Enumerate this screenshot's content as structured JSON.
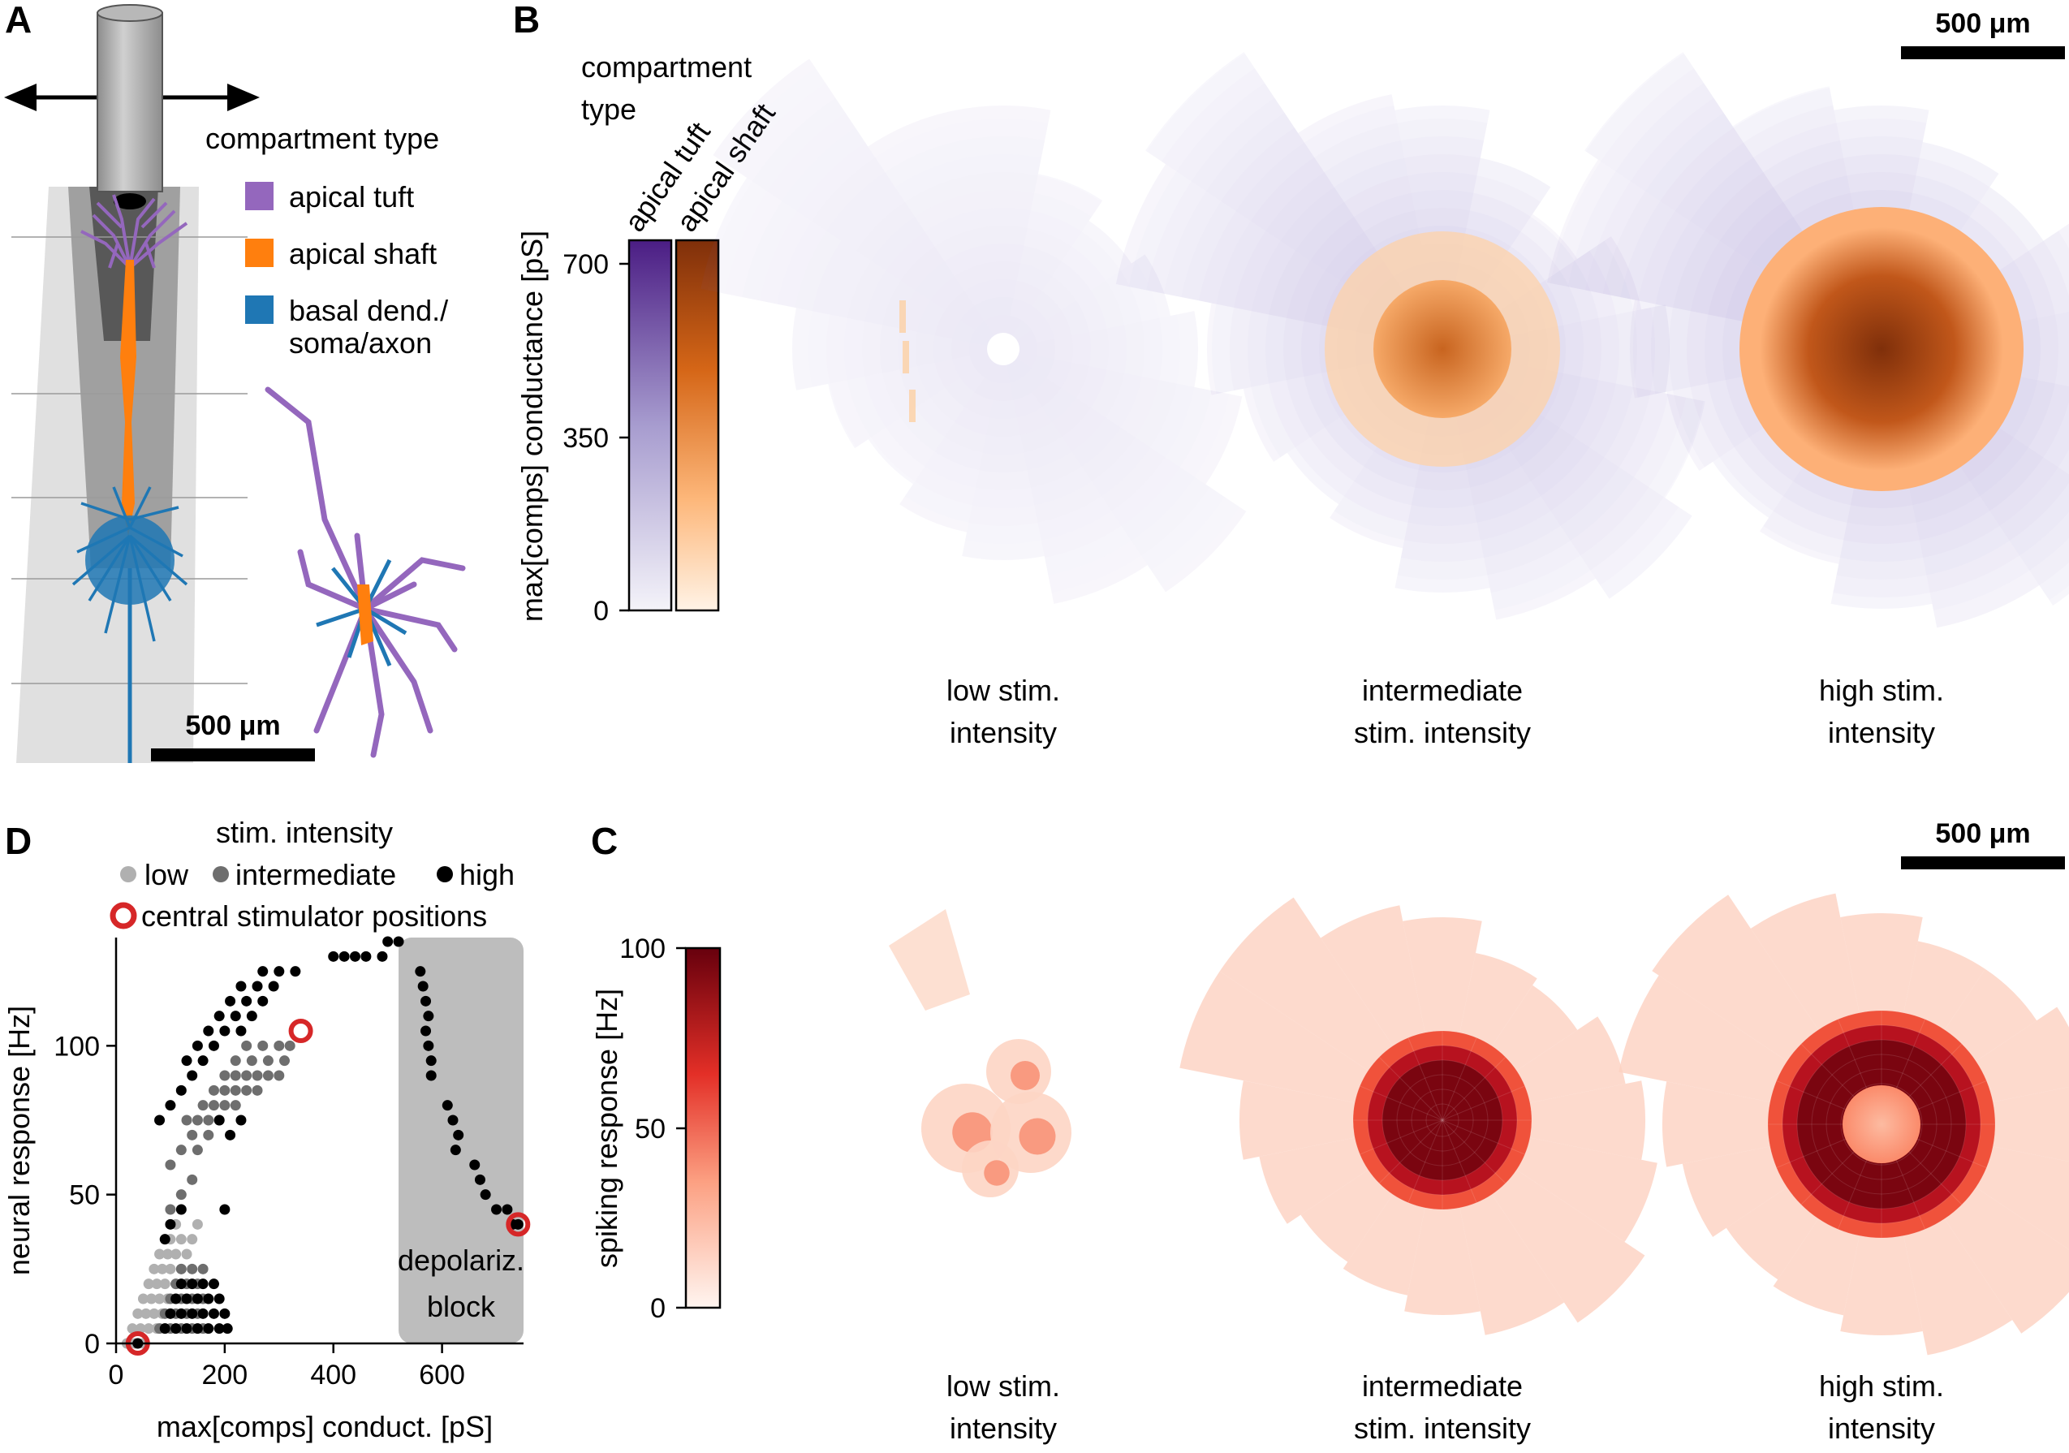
{
  "panel_letters": {
    "A": "A",
    "B": "B",
    "C": "C",
    "D": "D"
  },
  "panel_a": {
    "legend_title": "compartment type",
    "legend": [
      {
        "label": "apical tuft",
        "color": "#9467bd"
      },
      {
        "label": "apical shaft",
        "color": "#ff7f0e"
      },
      {
        "label": "basal dend./",
        "label2": "soma/axon",
        "color": "#1f77b4"
      }
    ],
    "scalebar": "500 μm"
  },
  "panel_b": {
    "colorbar_title": [
      "compartment",
      "type"
    ],
    "colorbar_labels": [
      "apical tuft",
      "apical shaft"
    ],
    "ylabel": "max[comps] conductance [pS]",
    "ticks": [
      "0",
      "350",
      "700"
    ],
    "scalebar": "500 μm",
    "captions": [
      [
        "low stim.",
        "intensity"
      ],
      [
        "intermediate",
        "stim. intensity"
      ],
      [
        "high stim.",
        "intensity"
      ]
    ],
    "colors": {
      "tuft": "#4b1d84",
      "shaft": "#7f2f0a"
    }
  },
  "panel_c": {
    "ylabel": "spiking response [Hz]",
    "ticks": [
      "0",
      "50",
      "100"
    ],
    "scalebar": "500 μm",
    "captions": [
      [
        "low stim.",
        "intensity"
      ],
      [
        "intermediate",
        "stim. intensity"
      ],
      [
        "high stim.",
        "intensity"
      ]
    ],
    "colors": {
      "max": "#67000d"
    }
  },
  "chart_data": {
    "type": "scatter",
    "legend_title": "stim. intensity",
    "legend": [
      "low",
      "intermediate",
      "high"
    ],
    "legend_marker": "central stimulator positions",
    "xlabel": "max[comps] conduct. [pS]",
    "ylabel": "neural response [Hz]",
    "xlim": [
      0,
      750
    ],
    "ylim": [
      0,
      135
    ],
    "xticks": [
      "0",
      "200",
      "400",
      "600"
    ],
    "yticks": [
      "0",
      "50",
      "100"
    ],
    "annotation": [
      "depolariz.",
      "block"
    ],
    "shaded_region": [
      520,
      750
    ],
    "colors": {
      "low": "#b0b0b0",
      "intermediate": "#6e6e6e",
      "high": "#000000",
      "marker": "#d62728",
      "shade": "#bdbdbd"
    },
    "series": [
      {
        "name": "low",
        "points": [
          [
            20,
            0
          ],
          [
            35,
            0
          ],
          [
            50,
            0
          ],
          [
            30,
            5
          ],
          [
            45,
            5
          ],
          [
            60,
            5
          ],
          [
            75,
            5
          ],
          [
            90,
            5
          ],
          [
            40,
            10
          ],
          [
            55,
            10
          ],
          [
            70,
            10
          ],
          [
            85,
            10
          ],
          [
            100,
            10
          ],
          [
            50,
            15
          ],
          [
            65,
            15
          ],
          [
            80,
            15
          ],
          [
            95,
            15
          ],
          [
            60,
            20
          ],
          [
            75,
            20
          ],
          [
            90,
            20
          ],
          [
            110,
            20
          ],
          [
            70,
            25
          ],
          [
            85,
            25
          ],
          [
            100,
            25
          ],
          [
            120,
            25
          ],
          [
            80,
            30
          ],
          [
            95,
            30
          ],
          [
            110,
            30
          ],
          [
            130,
            30
          ],
          [
            100,
            35
          ],
          [
            120,
            35
          ],
          [
            140,
            35
          ],
          [
            110,
            40
          ],
          [
            150,
            40
          ]
        ]
      },
      {
        "name": "intermediate",
        "points": [
          [
            80,
            5
          ],
          [
            100,
            5
          ],
          [
            120,
            5
          ],
          [
            140,
            5
          ],
          [
            160,
            5
          ],
          [
            90,
            10
          ],
          [
            110,
            10
          ],
          [
            130,
            10
          ],
          [
            150,
            10
          ],
          [
            100,
            15
          ],
          [
            120,
            15
          ],
          [
            140,
            15
          ],
          [
            160,
            15
          ],
          [
            110,
            20
          ],
          [
            130,
            20
          ],
          [
            150,
            20
          ],
          [
            120,
            25
          ],
          [
            140,
            25
          ],
          [
            160,
            25
          ],
          [
            100,
            45
          ],
          [
            120,
            50
          ],
          [
            140,
            55
          ],
          [
            100,
            60
          ],
          [
            120,
            65
          ],
          [
            140,
            70
          ],
          [
            130,
            75
          ],
          [
            150,
            75
          ],
          [
            170,
            75
          ],
          [
            190,
            75
          ],
          [
            160,
            80
          ],
          [
            180,
            80
          ],
          [
            200,
            80
          ],
          [
            220,
            80
          ],
          [
            180,
            85
          ],
          [
            200,
            85
          ],
          [
            220,
            85
          ],
          [
            240,
            85
          ],
          [
            260,
            85
          ],
          [
            200,
            90
          ],
          [
            220,
            90
          ],
          [
            240,
            90
          ],
          [
            260,
            90
          ],
          [
            280,
            90
          ],
          [
            300,
            90
          ],
          [
            220,
            95
          ],
          [
            250,
            95
          ],
          [
            280,
            95
          ],
          [
            310,
            95
          ],
          [
            240,
            100
          ],
          [
            270,
            100
          ],
          [
            300,
            100
          ],
          [
            320,
            100
          ],
          [
            150,
            65
          ],
          [
            170,
            70
          ]
        ]
      },
      {
        "name": "high",
        "points": [
          [
            40,
            0
          ],
          [
            90,
            5
          ],
          [
            110,
            5
          ],
          [
            130,
            5
          ],
          [
            150,
            5
          ],
          [
            170,
            5
          ],
          [
            190,
            5
          ],
          [
            205,
            5
          ],
          [
            100,
            10
          ],
          [
            120,
            10
          ],
          [
            140,
            10
          ],
          [
            160,
            10
          ],
          [
            180,
            10
          ],
          [
            200,
            10
          ],
          [
            110,
            15
          ],
          [
            130,
            15
          ],
          [
            150,
            15
          ],
          [
            170,
            15
          ],
          [
            190,
            15
          ],
          [
            120,
            20
          ],
          [
            140,
            20
          ],
          [
            160,
            20
          ],
          [
            180,
            20
          ],
          [
            90,
            35
          ],
          [
            100,
            40
          ],
          [
            120,
            45
          ],
          [
            200,
            45
          ],
          [
            80,
            75
          ],
          [
            100,
            80
          ],
          [
            120,
            85
          ],
          [
            140,
            90
          ],
          [
            130,
            95
          ],
          [
            160,
            95
          ],
          [
            150,
            100
          ],
          [
            180,
            100
          ],
          [
            170,
            105
          ],
          [
            200,
            105
          ],
          [
            230,
            105
          ],
          [
            190,
            110
          ],
          [
            220,
            110
          ],
          [
            250,
            110
          ],
          [
            210,
            115
          ],
          [
            240,
            115
          ],
          [
            270,
            115
          ],
          [
            230,
            120
          ],
          [
            260,
            120
          ],
          [
            290,
            120
          ],
          [
            270,
            125
          ],
          [
            300,
            125
          ],
          [
            330,
            125
          ],
          [
            190,
            75
          ],
          [
            210,
            70
          ],
          [
            230,
            75
          ],
          [
            400,
            130
          ],
          [
            420,
            130
          ],
          [
            440,
            130
          ],
          [
            460,
            130
          ],
          [
            490,
            130
          ],
          [
            500,
            135
          ],
          [
            520,
            135
          ],
          [
            560,
            125
          ],
          [
            565,
            120
          ],
          [
            570,
            115
          ],
          [
            575,
            110
          ],
          [
            570,
            105
          ],
          [
            575,
            100
          ],
          [
            580,
            95
          ],
          [
            580,
            90
          ],
          [
            610,
            80
          ],
          [
            620,
            75
          ],
          [
            630,
            70
          ],
          [
            625,
            65
          ],
          [
            660,
            60
          ],
          [
            670,
            55
          ],
          [
            680,
            50
          ],
          [
            700,
            45
          ],
          [
            720,
            45
          ],
          [
            740,
            40
          ],
          [
            730,
            40
          ]
        ]
      },
      {
        "name": "central stimulator positions",
        "points": [
          [
            40,
            0
          ],
          [
            340,
            105
          ],
          [
            740,
            40
          ]
        ]
      }
    ]
  }
}
